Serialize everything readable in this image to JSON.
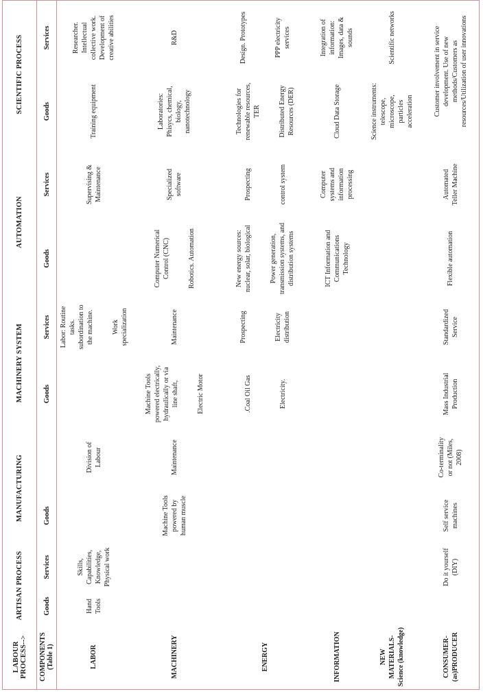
{
  "line_color": "#c79496",
  "table": {
    "corner": {
      "top": "LABOUR\nPROCESS-->",
      "bottom": "COMPONENTS\n(Table 1)"
    },
    "groups": [
      {
        "label": "ARTISAN PROCESS",
        "goods": "Goods",
        "services": "Services"
      },
      {
        "label": "MANUFACTURING",
        "goods": "Goods",
        "services": ""
      },
      {
        "label": "MACHINERY SYSTEM",
        "goods": "Goods",
        "services": "Services"
      },
      {
        "label": "AUTOMATION",
        "goods": "Goods",
        "services": "Services"
      },
      {
        "label": "SCIENTIFIC PROCESS",
        "goods": "Goods",
        "services": "Services"
      }
    ],
    "rows": [
      {
        "label": "LABOR",
        "cells": {
          "artisan_goods": [
            "Hand\nTools"
          ],
          "artisan_services": [
            "Skills,\nCapabilities,\nKnowledge,\nPhysical work"
          ],
          "manufacturing_goods": [],
          "manufacturing_services": [
            "Division of\nLabour"
          ],
          "machinery_goods": [],
          "machinery_services": [
            "Labor: Routine\ntasks.\nsubordination to\nthe machine.",
            "Work\nspecialization"
          ],
          "automation_goods": [],
          "automation_services": [
            "Supervising &\nMaintenance"
          ],
          "scientific_goods": [
            "Training equipment"
          ],
          "scientific_services": [
            "Researcher.\nIntellectual\ncollective work.\nDevelopment of\ncreative abilities"
          ]
        }
      },
      {
        "label": "MACHINERY",
        "cells": {
          "artisan_goods": [],
          "artisan_services": [],
          "manufacturing_goods": [
            "Machine Tools\npowered by\nhuman muscle"
          ],
          "manufacturing_services": [
            "Maintenance"
          ],
          "machinery_goods": [
            "Machine Tools\npowered electrically,\nhydraulically or via\nline shaft,",
            "Electric Motor"
          ],
          "machinery_services": [
            "Maintenance"
          ],
          "automation_goods": [
            "Computer Numerical\nControl (CNC)",
            "Robotics. Automation"
          ],
          "automation_services": [
            "Specialized\nsoftware"
          ],
          "scientific_goods": [
            "Laboratories:\nPhisycs, chemical,\nbiology,\nnanotechnology"
          ],
          "scientific_services": [
            "R&D"
          ]
        }
      },
      {
        "label": "ENERGY",
        "cells": {
          "artisan_goods": [],
          "artisan_services": [],
          "manufacturing_goods": [],
          "manufacturing_services": [],
          "machinery_goods": [
            ".Coal Oil Gas",
            "Electricity."
          ],
          "machinery_services": [
            "Prospecting",
            "Electricity\ndistribution"
          ],
          "automation_goods": [
            "New energy sources:\nnuclear, solar, biological",
            "Power generation,\ntransmission systems, and\ndistribution systems"
          ],
          "automation_services": [
            "Prospecting",
            "control system"
          ],
          "scientific_goods": [
            "Technologies for\nrenewable resources,\nTER",
            "Distributed Energy\nResources (DER)"
          ],
          "scientific_services": [
            "Design. Prototypes",
            "PPP electricity\nservices"
          ]
        }
      },
      {
        "label": "INFORMATION",
        "cells": {
          "artisan_goods": [],
          "artisan_services": [],
          "manufacturing_goods": [],
          "manufacturing_services": [],
          "machinery_goods": [],
          "machinery_services": [],
          "automation_goods": [
            "ICT Information and\nCommunications\nTechnology"
          ],
          "automation_services": [
            "Computer\nsystems and\ninformation\nprocessing"
          ],
          "scientific_goods": [
            "Cloud Data Storage"
          ],
          "scientific_services": [
            "Integration of\ninformation:\nImages, data &\nsounds"
          ]
        }
      },
      {
        "label": "NEW\nMATERIALS-\nScience (knowledge)",
        "cells": {
          "artisan_goods": [],
          "artisan_services": [],
          "manufacturing_goods": [],
          "manufacturing_services": [],
          "machinery_goods": [],
          "machinery_services": [],
          "automation_goods": [],
          "automation_services": [],
          "scientific_goods": [
            "Science instruments:\ntelescope,\nmicroscope,\nparticles\nacceleration"
          ],
          "scientific_services": [
            "Scientific networks"
          ]
        }
      },
      {
        "label": "CONSUMER-\n(as)PRODUCER",
        "cells": {
          "artisan_goods": [],
          "artisan_services": [
            "Do it yourself\n(DIY)"
          ],
          "manufacturing_goods": [
            "Self service\nmachines"
          ],
          "manufacturing_services": [
            "Co-terminality\nor not (Miles,\n2008)"
          ],
          "machinery_goods": [
            "Mass Industrial\nProduction"
          ],
          "machinery_services": [
            "Standardized\nService"
          ],
          "automation_goods": [
            "Flexible automation"
          ],
          "automation_services": [
            "Automated\nTeller Machine"
          ],
          "scientific_goods": [],
          "scientific_services": [
            "Customer involvement in service\ndevelopment. Use of new\nmethods/Customers as\nresources/Utilization of user innovations"
          ]
        }
      }
    ]
  }
}
